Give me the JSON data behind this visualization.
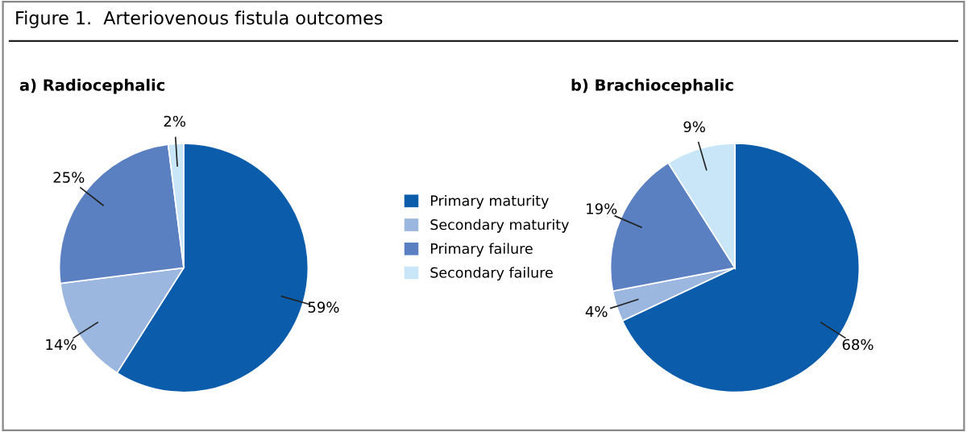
{
  "chart_data": [
    {
      "type": "pie",
      "title": "a) Radiocephalic",
      "annotations": [
        "Figure 1.  Arteriovenous fistula outcomes"
      ],
      "categories": [
        "Primary maturity",
        "Secondary maturity",
        "Primary failure",
        "Secondary failure"
      ],
      "values": [
        59,
        14,
        25,
        2
      ],
      "value_labels": [
        "59%",
        "14%",
        "25%",
        "2%"
      ],
      "colors": [
        "#0b5cab",
        "#9bb6df",
        "#5b80c2",
        "#c8e6f8"
      ],
      "legend": "right"
    },
    {
      "type": "pie",
      "title": "b) Brachiocephalic",
      "categories": [
        null,
        null,
        null,
        null
      ],
      "values": [
        68,
        4,
        19,
        9
      ],
      "value_labels": [
        "68%",
        "4%",
        "19%",
        "9%"
      ],
      "colors": [
        "#0b5cab",
        "#9bb6df",
        "#5b80c2",
        "#c8e6f8"
      ]
    }
  ]
}
